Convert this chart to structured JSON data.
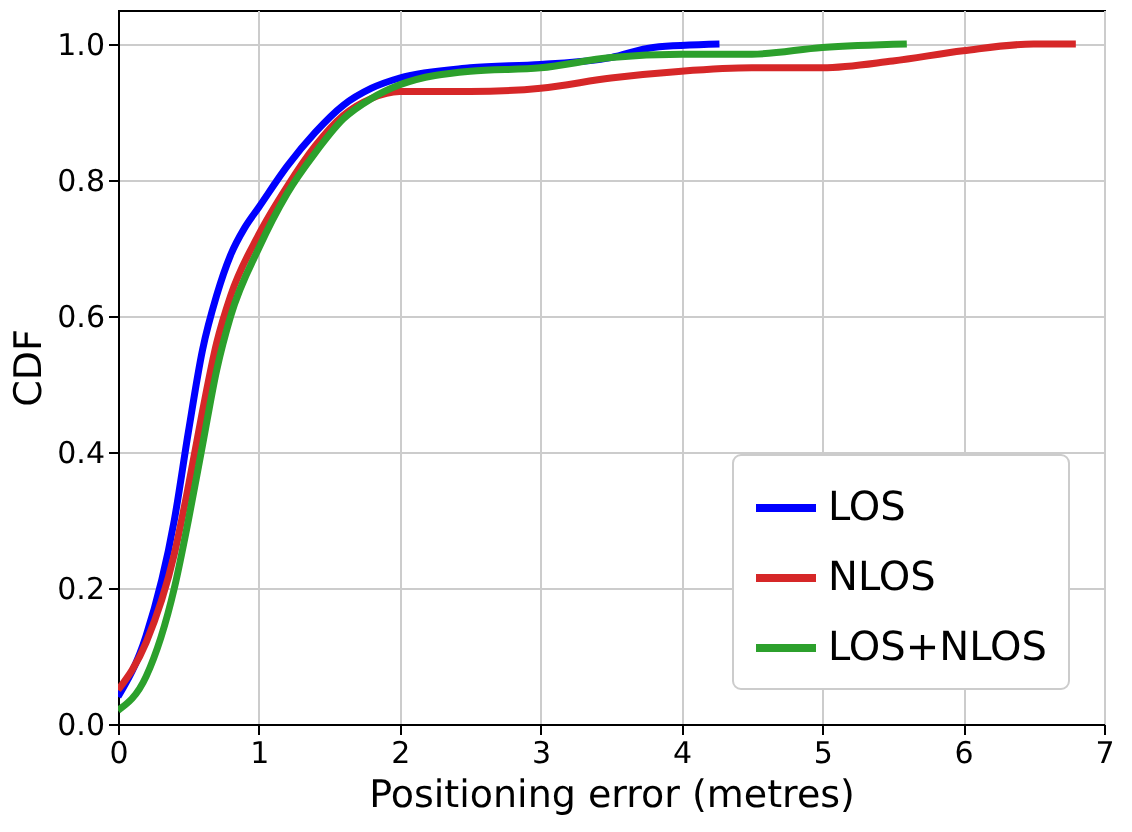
{
  "chart_data": {
    "type": "line",
    "xlabel": "Positioning error (metres)",
    "ylabel": "CDF",
    "xlim": [
      0,
      7
    ],
    "xticks": [
      0,
      1,
      2,
      3,
      4,
      5,
      6,
      7
    ],
    "ylim": [
      0,
      1.05
    ],
    "yticks": [
      {
        "value": 0,
        "label": "0.0"
      },
      0.2,
      0.4,
      0.6,
      0.8,
      {
        "value": 1,
        "label": "1.0"
      }
    ],
    "grid": true,
    "legend": "bottom right",
    "marker": "none",
    "line_style": "solid",
    "series": [
      {
        "name": "LOS",
        "color": "#0000ff",
        "x": [
          0,
          0.2,
          0.4,
          0.5,
          0.6,
          0.7,
          0.8,
          0.9,
          1.0,
          1.2,
          1.4,
          1.6,
          1.8,
          2.0,
          2.5,
          3.0,
          3.5,
          3.8,
          4.27
        ],
        "values": [
          0.04,
          0.13,
          0.3,
          0.43,
          0.55,
          0.63,
          0.69,
          0.73,
          0.76,
          0.82,
          0.87,
          0.91,
          0.935,
          0.95,
          0.965,
          0.97,
          0.98,
          0.995,
          1.0
        ]
      },
      {
        "name": "NLOS",
        "color": "#d62728",
        "x": [
          0,
          0.2,
          0.4,
          0.5,
          0.6,
          0.7,
          0.8,
          1.0,
          1.2,
          1.4,
          1.6,
          1.8,
          2.0,
          2.5,
          3.0,
          3.5,
          4.0,
          4.5,
          5.0,
          5.5,
          6.0,
          6.5,
          6.8
        ],
        "values": [
          0.05,
          0.12,
          0.25,
          0.35,
          0.46,
          0.56,
          0.63,
          0.72,
          0.79,
          0.85,
          0.895,
          0.92,
          0.93,
          0.93,
          0.935,
          0.95,
          0.96,
          0.965,
          0.965,
          0.975,
          0.99,
          1.0,
          1.0
        ]
      },
      {
        "name": "LOS+NLOS",
        "color": "#2ca02c",
        "x": [
          0,
          0.2,
          0.4,
          0.5,
          0.6,
          0.7,
          0.8,
          1.0,
          1.2,
          1.4,
          1.6,
          1.8,
          2.0,
          2.5,
          3.0,
          3.5,
          4.0,
          4.5,
          5.0,
          5.6
        ],
        "values": [
          0.02,
          0.07,
          0.2,
          0.3,
          0.41,
          0.52,
          0.6,
          0.7,
          0.78,
          0.84,
          0.89,
          0.92,
          0.94,
          0.96,
          0.965,
          0.98,
          0.985,
          0.985,
          0.995,
          1.0
        ]
      }
    ]
  }
}
